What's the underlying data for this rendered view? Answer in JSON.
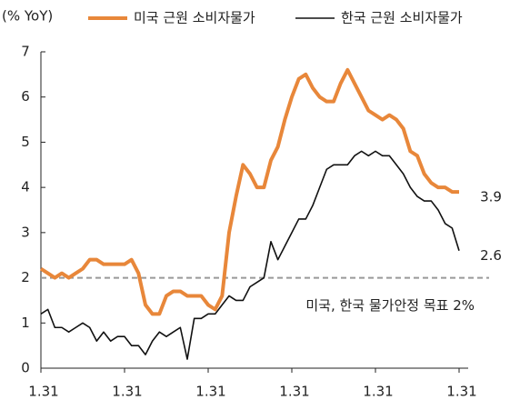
{
  "chart_data": {
    "type": "line",
    "y_label": "(% YoY)",
    "categories": [
      "1.31",
      null,
      null,
      null,
      null,
      null,
      null,
      null,
      null,
      null,
      null,
      null,
      "1.31",
      null,
      null,
      null,
      null,
      null,
      null,
      null,
      null,
      null,
      null,
      null,
      "1.31",
      null,
      null,
      null,
      null,
      null,
      null,
      null,
      null,
      null,
      null,
      null,
      "1.31",
      null,
      null,
      null,
      null,
      null,
      null,
      null,
      null,
      null,
      null,
      null,
      "1.31",
      null,
      null,
      null,
      null,
      null,
      null,
      null,
      null,
      null,
      null,
      null,
      "1.31"
    ],
    "series": [
      {
        "name": "미국 근원 소비자물가",
        "color": "#e8873a",
        "values": [
          2.2,
          2.1,
          2.0,
          2.1,
          2.0,
          2.1,
          2.2,
          2.4,
          2.4,
          2.3,
          2.3,
          2.3,
          2.3,
          2.4,
          2.1,
          1.4,
          1.2,
          1.2,
          1.6,
          1.7,
          1.7,
          1.6,
          1.6,
          1.6,
          1.4,
          1.3,
          1.6,
          3.0,
          3.8,
          4.5,
          4.3,
          4.0,
          4.0,
          4.6,
          4.9,
          5.5,
          6.0,
          6.4,
          6.5,
          6.2,
          6.0,
          5.9,
          5.9,
          6.3,
          6.6,
          6.3,
          6.0,
          5.7,
          5.6,
          5.5,
          5.6,
          5.5,
          5.3,
          4.8,
          4.7,
          4.3,
          4.1,
          4.0,
          4.0,
          3.9,
          3.9
        ]
      },
      {
        "name": "한국 근원 소비자물가",
        "color": "#111111",
        "values": [
          1.2,
          1.3,
          0.9,
          0.9,
          0.8,
          0.9,
          1.0,
          0.9,
          0.6,
          0.8,
          0.6,
          0.7,
          0.7,
          0.5,
          0.5,
          0.3,
          0.6,
          0.8,
          0.7,
          0.8,
          0.9,
          0.2,
          1.1,
          1.1,
          1.2,
          1.2,
          1.4,
          1.6,
          1.5,
          1.5,
          1.8,
          1.9,
          2.0,
          2.8,
          2.4,
          2.7,
          3.0,
          3.3,
          3.3,
          3.6,
          4.0,
          4.4,
          4.5,
          4.5,
          4.5,
          4.7,
          4.8,
          4.7,
          4.8,
          4.7,
          4.7,
          4.5,
          4.3,
          4.0,
          3.8,
          3.7,
          3.7,
          3.5,
          3.2,
          3.1,
          2.6
        ]
      }
    ],
    "reference_line": {
      "value": 2,
      "label": "미국, 한국 물가안정 목표 2%",
      "color": "#999999"
    },
    "ylim": [
      0,
      7
    ],
    "yticks": [
      0,
      1,
      2,
      3,
      4,
      5,
      6,
      7
    ],
    "legend": "top",
    "grid": false
  }
}
